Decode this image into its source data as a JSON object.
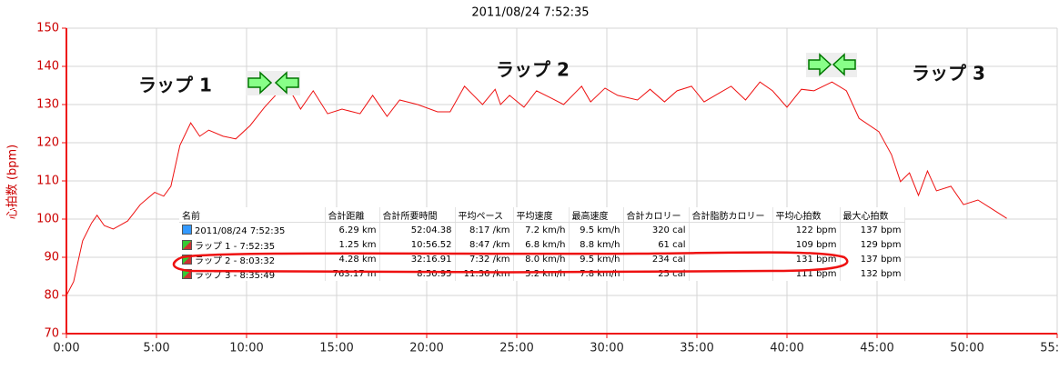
{
  "chart_data": {
    "type": "line",
    "title": "2011/08/24 7:52:35",
    "y_label": "心拍数 (bpm)",
    "x": [
      0,
      0.4,
      0.9,
      1.4,
      1.7,
      2.1,
      2.6,
      3.4,
      4.1,
      4.9,
      5.4,
      5.8,
      6.3,
      6.9,
      7.4,
      7.9,
      8.7,
      9.4,
      10.2,
      11,
      11.7,
      12.2,
      13,
      13.7,
      14.5,
      15.3,
      16.3,
      17,
      17.8,
      18.5,
      19.5,
      20.6,
      21.3,
      22.1,
      22.6,
      23.1,
      23.8,
      24.1,
      24.6,
      25.4,
      26.1,
      26.9,
      27.6,
      28.6,
      29.1,
      29.9,
      30.6,
      31.7,
      32.4,
      33.2,
      33.9,
      34.7,
      35.4,
      36.2,
      36.9,
      37.7,
      38.5,
      39.2,
      40,
      40.8,
      41.5,
      42.5,
      43.3,
      44,
      45.1,
      45.8,
      46.3,
      46.8,
      47.3,
      47.8,
      48.3,
      49.1,
      49.8,
      50.6,
      51.4,
      52.2
    ],
    "series": [
      {
        "name": "心拍数",
        "color": "#ee1111",
        "values": [
          80,
          83.6,
          94.3,
          99,
          101,
          98.3,
          97.4,
          99.5,
          103.8,
          107,
          106,
          108.6,
          119.3,
          125.2,
          121.7,
          123.3,
          121.7,
          121,
          124.5,
          129.3,
          132.9,
          135.5,
          128.8,
          133.6,
          127.6,
          128.8,
          127.6,
          132.4,
          126.9,
          131.2,
          130,
          128.1,
          128.1,
          134.8,
          132.4,
          130,
          134,
          130,
          132.4,
          129.3,
          133.6,
          131.7,
          130,
          134.8,
          130.7,
          134.3,
          132.4,
          131.2,
          134,
          130.7,
          133.6,
          134.8,
          130.7,
          132.9,
          134.8,
          131.2,
          135.9,
          133.6,
          129.3,
          134,
          133.6,
          135.9,
          133.6,
          126.4,
          122.9,
          116.9,
          109.8,
          112.1,
          106.2,
          112.6,
          107.4,
          108.6,
          103.8,
          105,
          102.6,
          100.2
        ]
      }
    ],
    "xlim": [
      0,
      55
    ],
    "ylim": [
      70,
      150
    ],
    "xticks": [
      {
        "value": 0,
        "label": "0:00"
      },
      {
        "value": 5,
        "label": "5:00"
      },
      {
        "value": 10,
        "label": "10:00"
      },
      {
        "value": 15,
        "label": "15:00"
      },
      {
        "value": 20,
        "label": "20:00"
      },
      {
        "value": 25,
        "label": "25:00"
      },
      {
        "value": 30,
        "label": "30:00"
      },
      {
        "value": 35,
        "label": "35:00"
      },
      {
        "value": 40,
        "label": "40:00"
      },
      {
        "value": 45,
        "label": "45:00"
      },
      {
        "value": 50,
        "label": "50:00"
      },
      {
        "value": 55,
        "label": "55:00"
      }
    ],
    "yticks": [
      70,
      80,
      90,
      100,
      110,
      120,
      130,
      140,
      150
    ],
    "grid": true,
    "annotations": [
      "ラップ 1",
      "ラップ 2",
      "ラップ 3"
    ]
  },
  "summary_table": {
    "header": [
      "名前",
      "合計距離",
      "合計所要時間",
      "平均ペース",
      "平均速度",
      "最高速度",
      "合計カロリー",
      "合計脂肪カロリー",
      "平均心拍数",
      "最大心拍数"
    ],
    "rows": [
      [
        "2011/08/24 7:52:35",
        "6.29 km",
        "52:04.38",
        "8:17 /km",
        "7.2 km/h",
        "9.5 km/h",
        "320 cal",
        null,
        "122 bpm",
        "137 bpm"
      ],
      [
        "ラップ 1 - 7:52:35",
        "1.25 km",
        "10:56.52",
        "8:47 /km",
        "6.8 km/h",
        "8.8 km/h",
        "61 cal",
        null,
        "109 bpm",
        "129 bpm"
      ],
      [
        "ラップ 2 - 8:03:32",
        "4.28 km",
        "32:16.91",
        "7:32 /km",
        "8.0 km/h",
        "9.5 km/h",
        "234 cal",
        null,
        "131 bpm",
        "137 bpm"
      ],
      [
        "ラップ 3 - 8:35:49",
        "763.17 m",
        "8:50.95",
        "11:36 /km",
        "5.2 km/h",
        "7.8 km/h",
        "25 cal",
        null,
        "111 bpm",
        "132 bpm"
      ]
    ]
  }
}
